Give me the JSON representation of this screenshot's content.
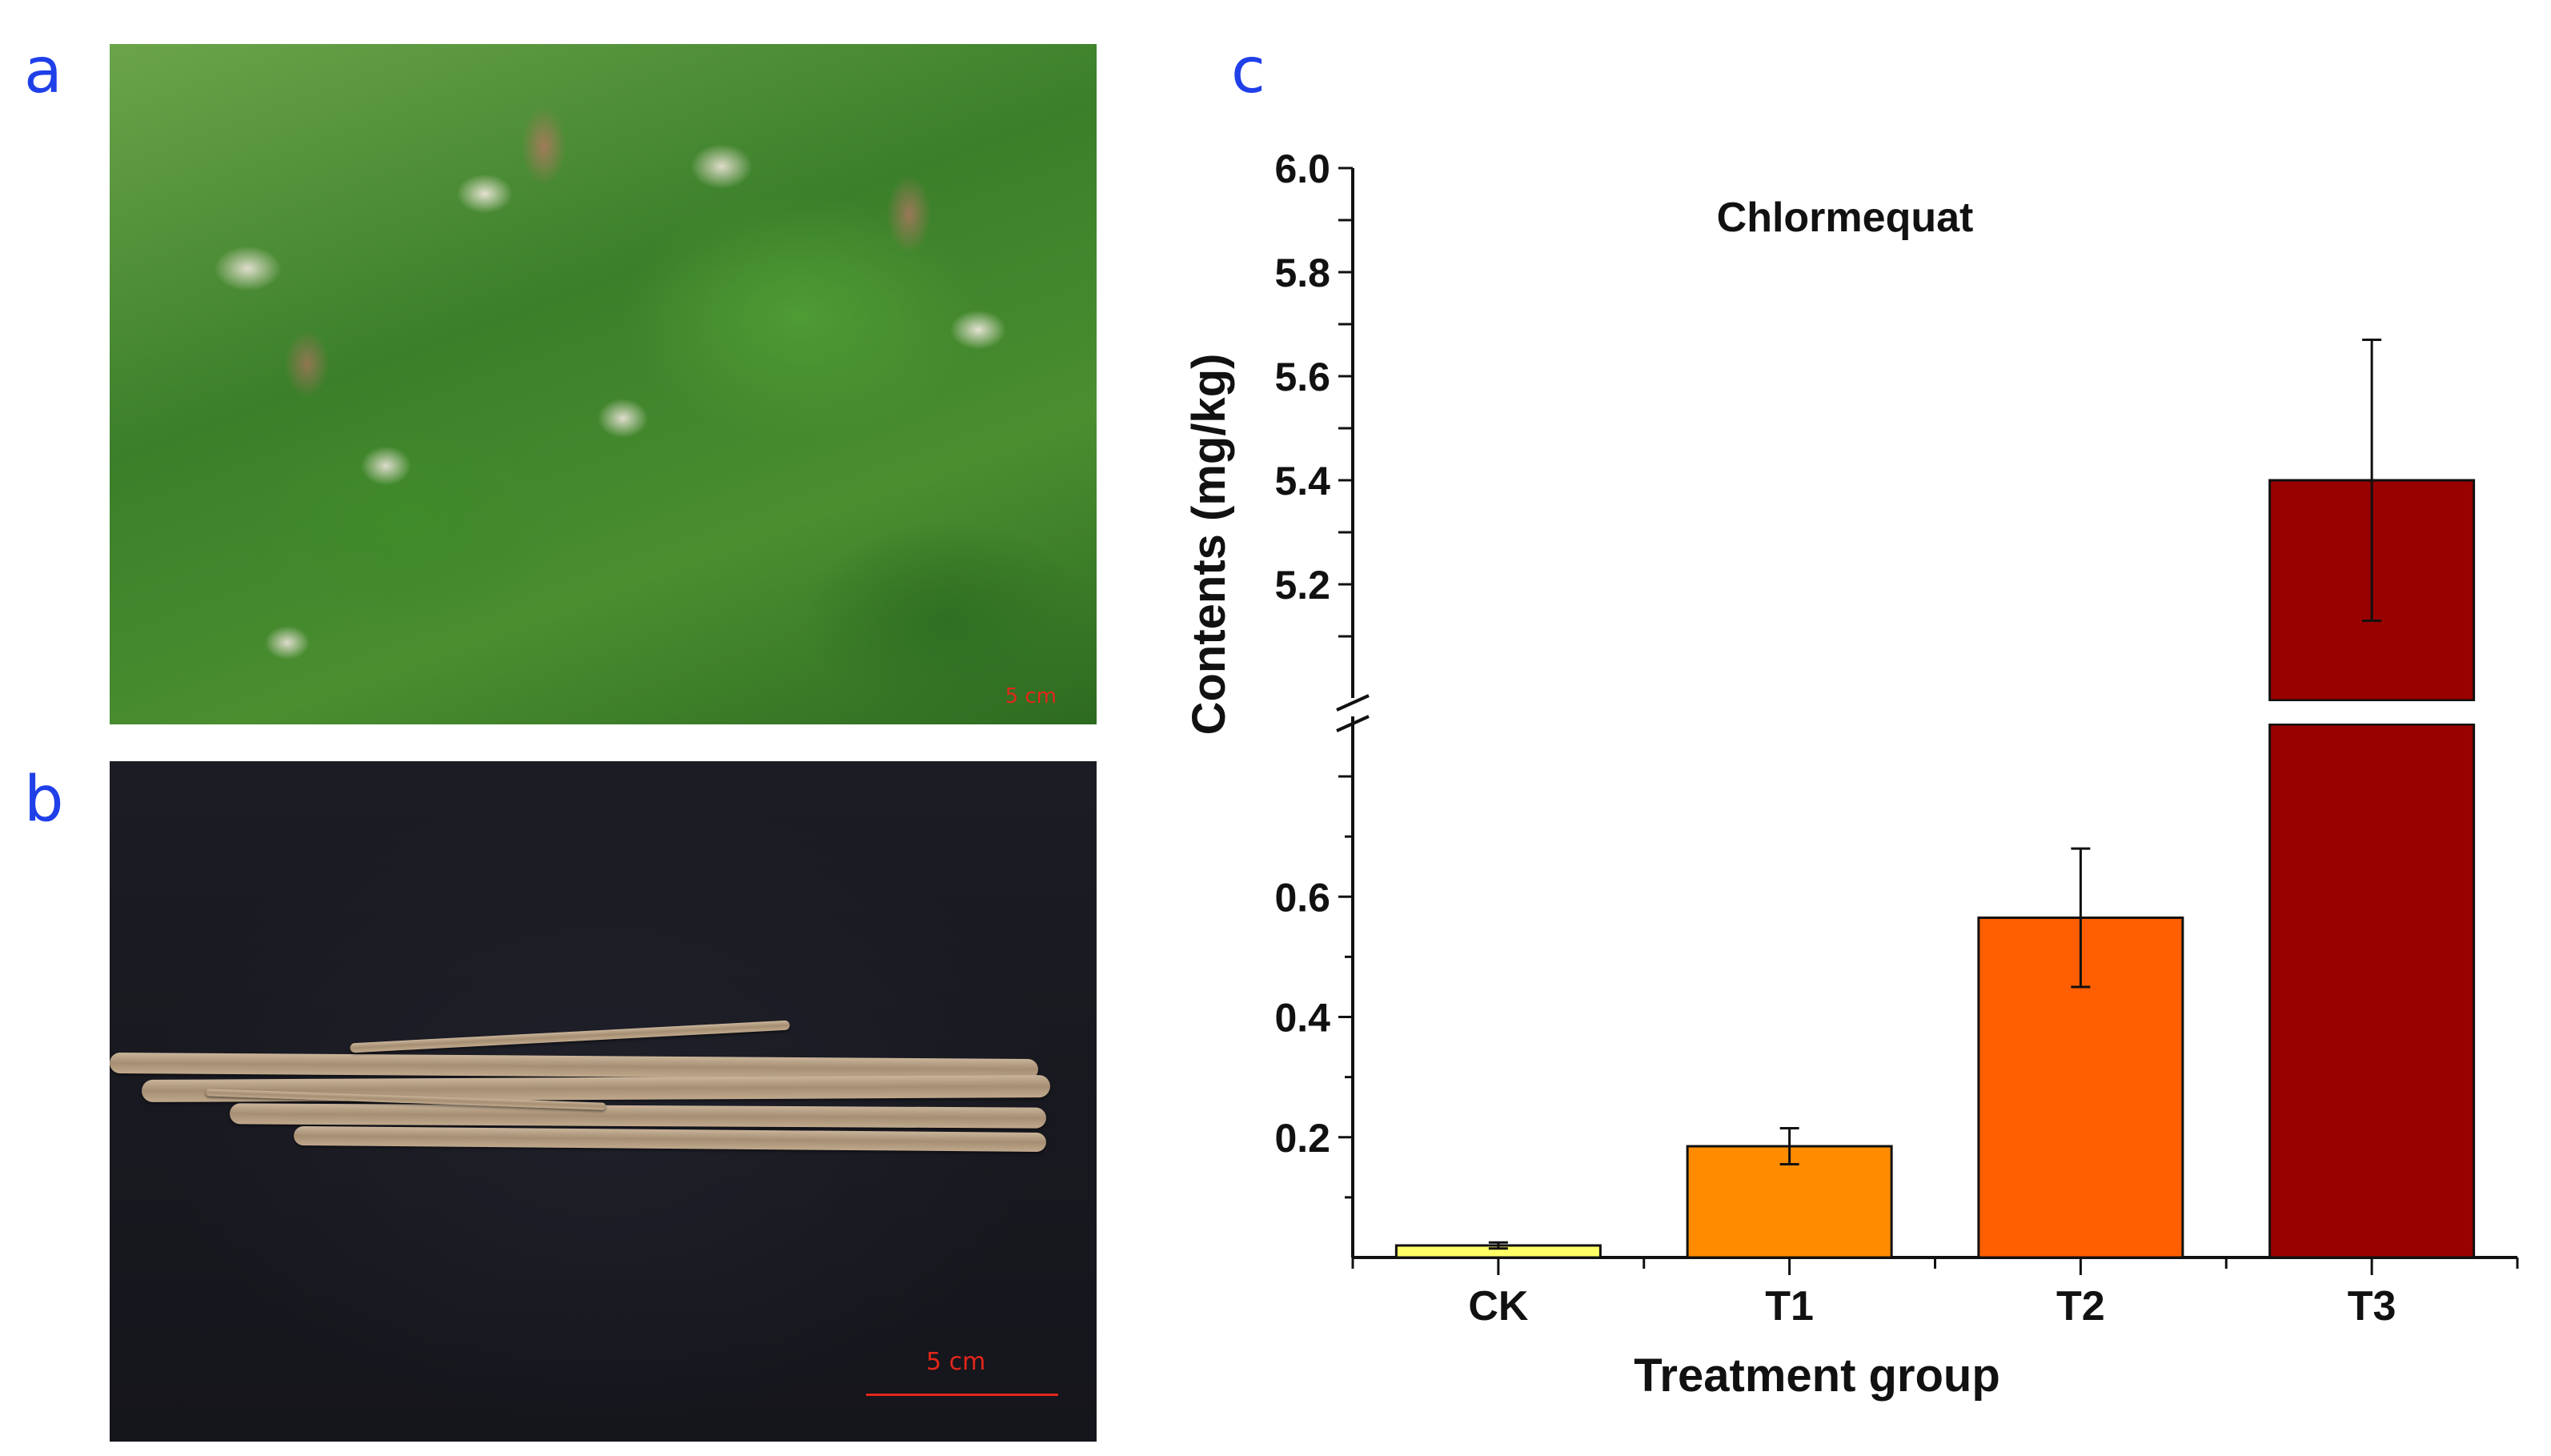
{
  "panels": {
    "a": {
      "letter": "a",
      "scale_text": "5 cm"
    },
    "b": {
      "letter": "b",
      "scale_text": "5 cm"
    },
    "c": {
      "letter": "c"
    }
  },
  "chart_data": {
    "type": "bar",
    "title": "Chlormequat",
    "xlabel": "Treatment group",
    "ylabel": "Contents (mg/kg)",
    "categories": [
      "CK",
      "T1",
      "T2",
      "T3"
    ],
    "values": [
      0.02,
      0.185,
      0.565,
      5.4
    ],
    "errors": [
      0.005,
      0.03,
      0.115,
      0.27
    ],
    "colors": [
      "#ffff66",
      "#ff8c00",
      "#ff5f00",
      "#990000"
    ],
    "axis_break": {
      "lower": [
        0,
        0.8
      ],
      "upper": [
        5.0,
        6.0
      ]
    },
    "lower_ticks": [
      "0.2",
      "0.4",
      "0.6"
    ],
    "upper_ticks": [
      "5.2",
      "5.4",
      "5.6",
      "5.8",
      "6.0"
    ],
    "grid": false,
    "legend": "none"
  }
}
